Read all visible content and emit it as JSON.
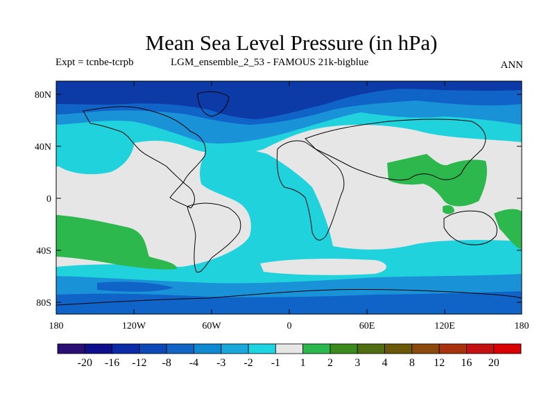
{
  "header": {
    "title": "Mean Sea Level Pressure (in hPa)",
    "experiment": "Expt = tcnbe-tcrpb",
    "ensemble": "LGM_ensemble_2_53 - FAMOUS 21k-bigblue",
    "season": "ANN"
  },
  "map": {
    "lat_labels": [
      "80N",
      "40N",
      "0",
      "40S",
      "80S"
    ],
    "lon_labels": [
      "180",
      "120W",
      "60W",
      "0",
      "60E",
      "120E",
      "180"
    ]
  },
  "colorbar": {
    "labels": [
      "-20",
      "-16",
      "-12",
      "-8",
      "-4",
      "-3",
      "-2",
      "-1",
      "1",
      "2",
      "3",
      "4",
      "8",
      "12",
      "16",
      "20"
    ],
    "colors": [
      "#2a0e73",
      "#0e0f8c",
      "#0a2aa6",
      "#0c48b6",
      "#0f64c4",
      "#0f8ad2",
      "#1aa8dc",
      "#1ed4e0",
      "#e6e6e6",
      "#2cb84c",
      "#3a8a1e",
      "#4f6d10",
      "#6a5808",
      "#8a4a0a",
      "#a8320c",
      "#c41010",
      "#d80000"
    ]
  },
  "colors": {
    "very_low": "#0c3aa6",
    "low": "#1064c8",
    "mid_low": "#1a92d8",
    "slight_low": "#20d2dc",
    "neutral": "#e6e6e6",
    "slight_high": "#2cb84c",
    "land_outline": "#000000"
  }
}
